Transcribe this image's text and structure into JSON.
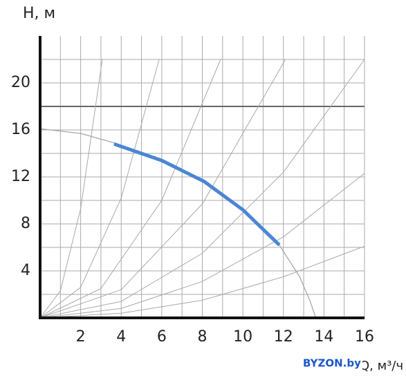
{
  "chart_data": {
    "type": "line",
    "y_label": "H, м",
    "x_label": "Q, м³/ч",
    "watermark": "BYZON.by",
    "xlim": [
      0,
      16
    ],
    "ylim": [
      0,
      24
    ],
    "xticks": [
      2,
      4,
      6,
      8,
      10,
      12,
      14,
      16
    ],
    "yticks": [
      4,
      8,
      12,
      16,
      20
    ],
    "x_minor_grid": [
      1,
      3,
      5,
      7,
      9,
      11,
      13,
      15
    ],
    "y_minor_grid": [
      2,
      6,
      10,
      14,
      18,
      22
    ],
    "emphasized_gridline": 18,
    "grid": true,
    "series": [
      {
        "color": "#a8a8a8",
        "width": 1,
        "x": [
          0,
          1,
          2,
          3.07
        ],
        "values": [
          0,
          2.3,
          9.3,
          22
        ]
      },
      {
        "color": "#a8a8a8",
        "width": 1,
        "x": [
          0,
          2,
          4,
          5.87
        ],
        "values": [
          0,
          2.6,
          10.2,
          22
        ]
      },
      {
        "color": "#a8a8a8",
        "width": 1,
        "x": [
          0,
          3,
          6,
          8.9
        ],
        "values": [
          0,
          2.5,
          10,
          22
        ]
      },
      {
        "color": "#a8a8a8",
        "width": 1,
        "x": [
          0,
          4,
          8,
          12.1
        ],
        "values": [
          0,
          2.4,
          9.7,
          22
        ]
      },
      {
        "color": "#a8a8a8",
        "width": 1,
        "x": [
          0,
          4,
          8,
          12,
          16
        ],
        "values": [
          0,
          1.4,
          5.5,
          12.4,
          22
        ]
      },
      {
        "color": "#a8a8a8",
        "width": 1,
        "x": [
          0,
          4,
          8,
          12,
          16
        ],
        "values": [
          0,
          0.8,
          3.1,
          6.9,
          12.3
        ]
      },
      {
        "color": "#a8a8a8",
        "width": 1,
        "x": [
          0,
          4,
          8,
          12,
          16
        ],
        "values": [
          0,
          0.4,
          1.5,
          3.5,
          6.1
        ]
      },
      {
        "color": "#a8a8a8",
        "width": 1.3,
        "x": [
          0,
          2,
          3.65,
          6,
          8.1,
          10,
          11.8,
          12.8,
          13.3,
          13.6
        ],
        "values": [
          16.1,
          15.7,
          14.9,
          13.4,
          11.6,
          9.2,
          6.2,
          3.5,
          1.5,
          0
        ]
      },
      {
        "color": "#4a86d4",
        "width": 5,
        "x": [
          3.65,
          6,
          8.1,
          10,
          11.8
        ],
        "values": [
          14.8,
          13.4,
          11.6,
          9.2,
          6.2
        ]
      }
    ]
  }
}
